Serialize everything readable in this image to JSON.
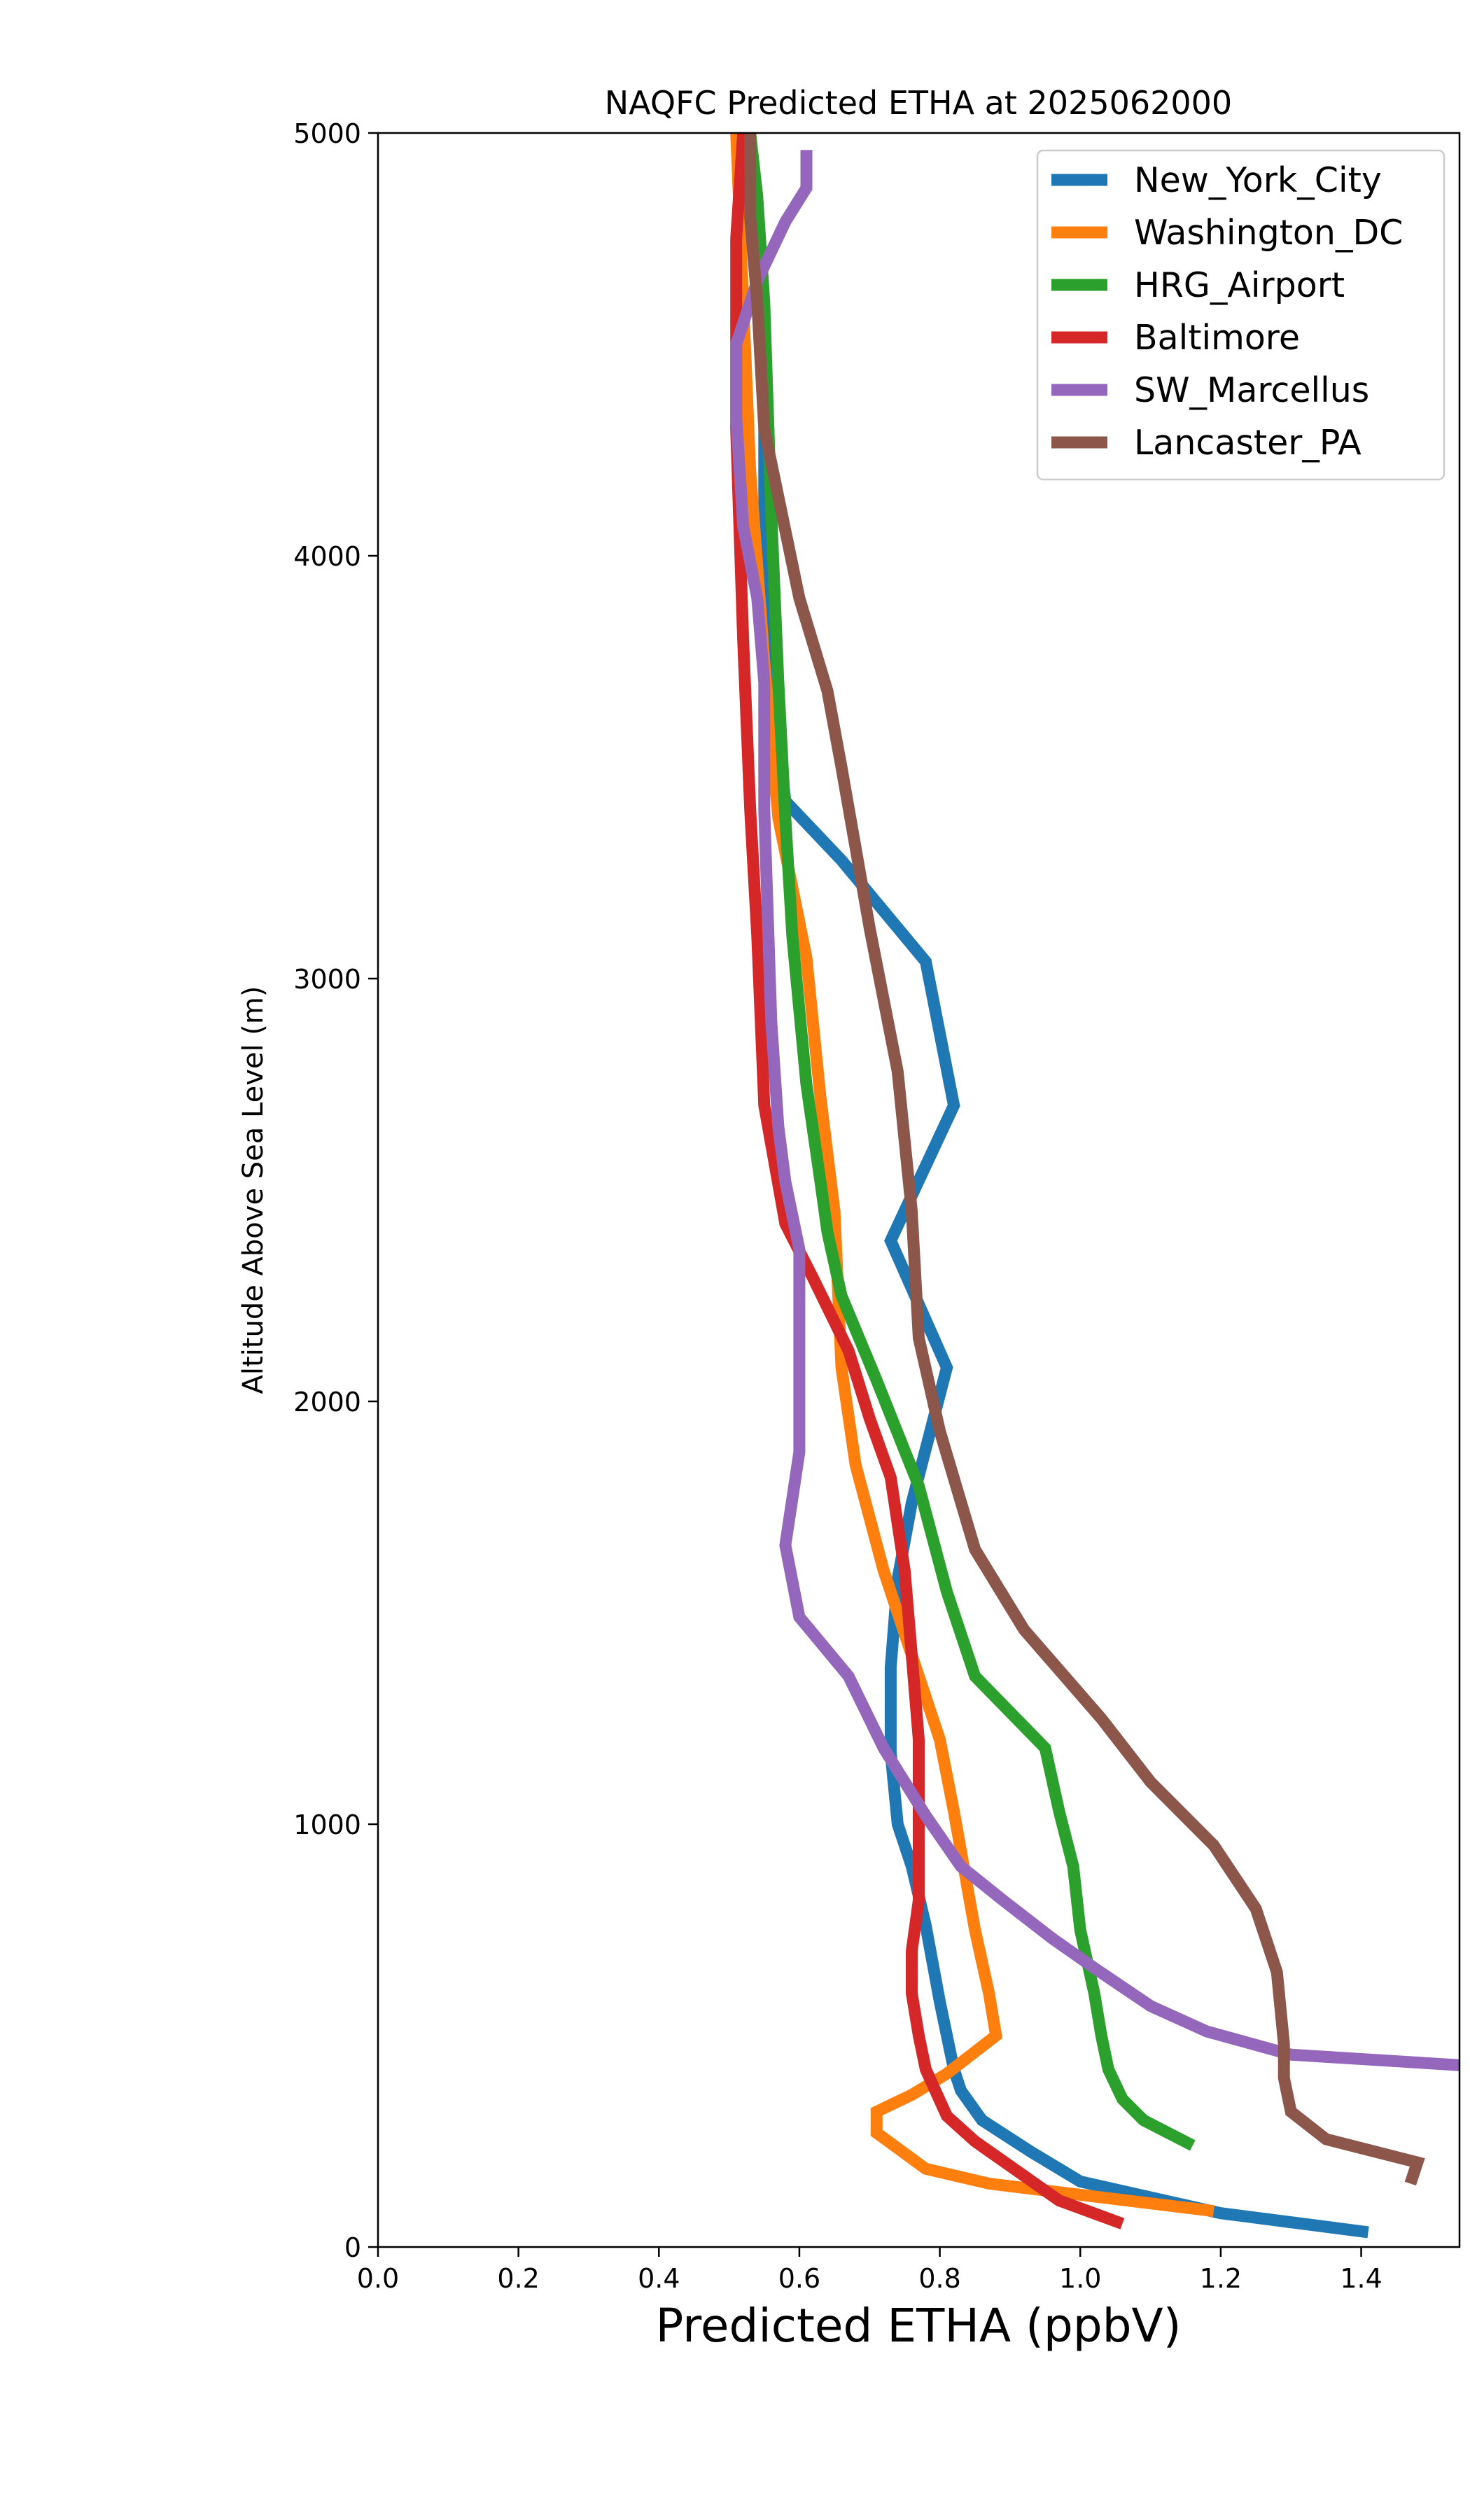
{
  "chart_data": {
    "type": "line",
    "title": "NAQFC Predicted ETHA at 2025062000",
    "xlabel": "Predicted ETHA (ppbV)",
    "ylabel": "Altitude Above Sea Level (m)",
    "xlim": [
      0.0,
      1.54
    ],
    "ylim": [
      0,
      5000
    ],
    "xticks": [
      "0.0",
      "0.2",
      "0.4",
      "0.6",
      "0.8",
      "1.0",
      "1.2",
      "1.4"
    ],
    "yticks": [
      "0",
      "1000",
      "2000",
      "3000",
      "4000",
      "5000"
    ],
    "grid": false,
    "legend_position": "top-right",
    "series": [
      {
        "name": "New_York_City",
        "color": "#1f77b4",
        "points": [
          [
            1.41,
            35
          ],
          [
            1.2,
            80
          ],
          [
            1.0,
            155
          ],
          [
            0.93,
            225
          ],
          [
            0.86,
            300
          ],
          [
            0.83,
            370
          ],
          [
            0.82,
            420
          ],
          [
            0.8,
            580
          ],
          [
            0.78,
            760
          ],
          [
            0.76,
            900
          ],
          [
            0.74,
            1000
          ],
          [
            0.73,
            1170
          ],
          [
            0.73,
            1370
          ],
          [
            0.74,
            1580
          ],
          [
            0.76,
            1760
          ],
          [
            0.81,
            2080
          ],
          [
            0.73,
            2380
          ],
          [
            0.82,
            2700
          ],
          [
            0.78,
            3040
          ],
          [
            0.66,
            3280
          ],
          [
            0.58,
            3420
          ],
          [
            0.55,
            3830
          ],
          [
            0.55,
            4370
          ],
          [
            0.54,
            4700
          ],
          [
            0.52,
            5000
          ]
        ]
      },
      {
        "name": "Washington_DC",
        "color": "#ff7f0e",
        "points": [
          [
            1.19,
            85
          ],
          [
            0.87,
            150
          ],
          [
            0.78,
            185
          ],
          [
            0.71,
            270
          ],
          [
            0.71,
            320
          ],
          [
            0.76,
            360
          ],
          [
            0.81,
            410
          ],
          [
            0.88,
            500
          ],
          [
            0.87,
            600
          ],
          [
            0.85,
            750
          ],
          [
            0.82,
            1030
          ],
          [
            0.8,
            1200
          ],
          [
            0.76,
            1400
          ],
          [
            0.72,
            1600
          ],
          [
            0.68,
            1850
          ],
          [
            0.66,
            2080
          ],
          [
            0.65,
            2450
          ],
          [
            0.63,
            2720
          ],
          [
            0.61,
            3050
          ],
          [
            0.57,
            3380
          ],
          [
            0.55,
            3750
          ],
          [
            0.53,
            4200
          ],
          [
            0.52,
            4600
          ],
          [
            0.51,
            5000
          ]
        ]
      },
      {
        "name": "HRG_Airport",
        "color": "#2ca02c",
        "points": [
          [
            1.16,
            240
          ],
          [
            1.09,
            300
          ],
          [
            1.06,
            350
          ],
          [
            1.04,
            420
          ],
          [
            1.03,
            500
          ],
          [
            1.02,
            600
          ],
          [
            1.0,
            750
          ],
          [
            0.99,
            900
          ],
          [
            0.97,
            1030
          ],
          [
            0.95,
            1180
          ],
          [
            0.85,
            1350
          ],
          [
            0.81,
            1550
          ],
          [
            0.77,
            1800
          ],
          [
            0.71,
            2050
          ],
          [
            0.66,
            2250
          ],
          [
            0.64,
            2400
          ],
          [
            0.63,
            2520
          ],
          [
            0.61,
            2750
          ],
          [
            0.59,
            3100
          ],
          [
            0.58,
            3380
          ],
          [
            0.57,
            3700
          ],
          [
            0.56,
            4100
          ],
          [
            0.55,
            4600
          ],
          [
            0.54,
            4850
          ],
          [
            0.53,
            5000
          ]
        ]
      },
      {
        "name": "Baltimore",
        "color": "#d62728",
        "points": [
          [
            1.06,
            55
          ],
          [
            0.97,
            110
          ],
          [
            0.91,
            180
          ],
          [
            0.85,
            250
          ],
          [
            0.81,
            310
          ],
          [
            0.78,
            420
          ],
          [
            0.77,
            500
          ],
          [
            0.76,
            600
          ],
          [
            0.76,
            700
          ],
          [
            0.77,
            820
          ],
          [
            0.77,
            1020
          ],
          [
            0.77,
            1200
          ],
          [
            0.76,
            1400
          ],
          [
            0.75,
            1600
          ],
          [
            0.73,
            1820
          ],
          [
            0.7,
            1960
          ],
          [
            0.67,
            2120
          ],
          [
            0.62,
            2290
          ],
          [
            0.58,
            2420
          ],
          [
            0.55,
            2700
          ],
          [
            0.54,
            3100
          ],
          [
            0.53,
            3400
          ],
          [
            0.52,
            3800
          ],
          [
            0.51,
            4300
          ],
          [
            0.51,
            4750
          ],
          [
            0.52,
            5000
          ]
        ]
      },
      {
        "name": "SW_Marcellus",
        "color": "#9467bd",
        "points": [
          [
            1.54,
            430
          ],
          [
            1.3,
            455
          ],
          [
            1.18,
            510
          ],
          [
            1.1,
            570
          ],
          [
            1.02,
            660
          ],
          [
            0.96,
            730
          ],
          [
            0.89,
            820
          ],
          [
            0.83,
            900
          ],
          [
            0.78,
            1020
          ],
          [
            0.72,
            1180
          ],
          [
            0.67,
            1350
          ],
          [
            0.6,
            1490
          ],
          [
            0.58,
            1660
          ],
          [
            0.6,
            1880
          ],
          [
            0.6,
            2100
          ],
          [
            0.6,
            2360
          ],
          [
            0.58,
            2520
          ],
          [
            0.57,
            2650
          ],
          [
            0.56,
            2900
          ],
          [
            0.55,
            3400
          ],
          [
            0.55,
            3700
          ],
          [
            0.54,
            3900
          ],
          [
            0.52,
            4070
          ],
          [
            0.51,
            4330
          ],
          [
            0.51,
            4500
          ],
          [
            0.54,
            4650
          ],
          [
            0.58,
            4790
          ],
          [
            0.61,
            4870
          ],
          [
            0.61,
            4960
          ]
        ]
      },
      {
        "name": "Lancaster_PA",
        "color": "#8c564b",
        "points": [
          [
            1.47,
            150
          ],
          [
            1.48,
            200
          ],
          [
            1.35,
            255
          ],
          [
            1.3,
            320
          ],
          [
            1.29,
            400
          ],
          [
            1.29,
            480
          ],
          [
            1.28,
            650
          ],
          [
            1.25,
            800
          ],
          [
            1.19,
            950
          ],
          [
            1.1,
            1100
          ],
          [
            1.03,
            1250
          ],
          [
            0.92,
            1460
          ],
          [
            0.85,
            1650
          ],
          [
            0.8,
            1930
          ],
          [
            0.77,
            2150
          ],
          [
            0.76,
            2450
          ],
          [
            0.74,
            2780
          ],
          [
            0.7,
            3120
          ],
          [
            0.66,
            3500
          ],
          [
            0.64,
            3680
          ],
          [
            0.6,
            3900
          ],
          [
            0.55,
            4300
          ],
          [
            0.54,
            4600
          ],
          [
            0.53,
            4800
          ],
          [
            0.53,
            5000
          ]
        ]
      }
    ]
  }
}
